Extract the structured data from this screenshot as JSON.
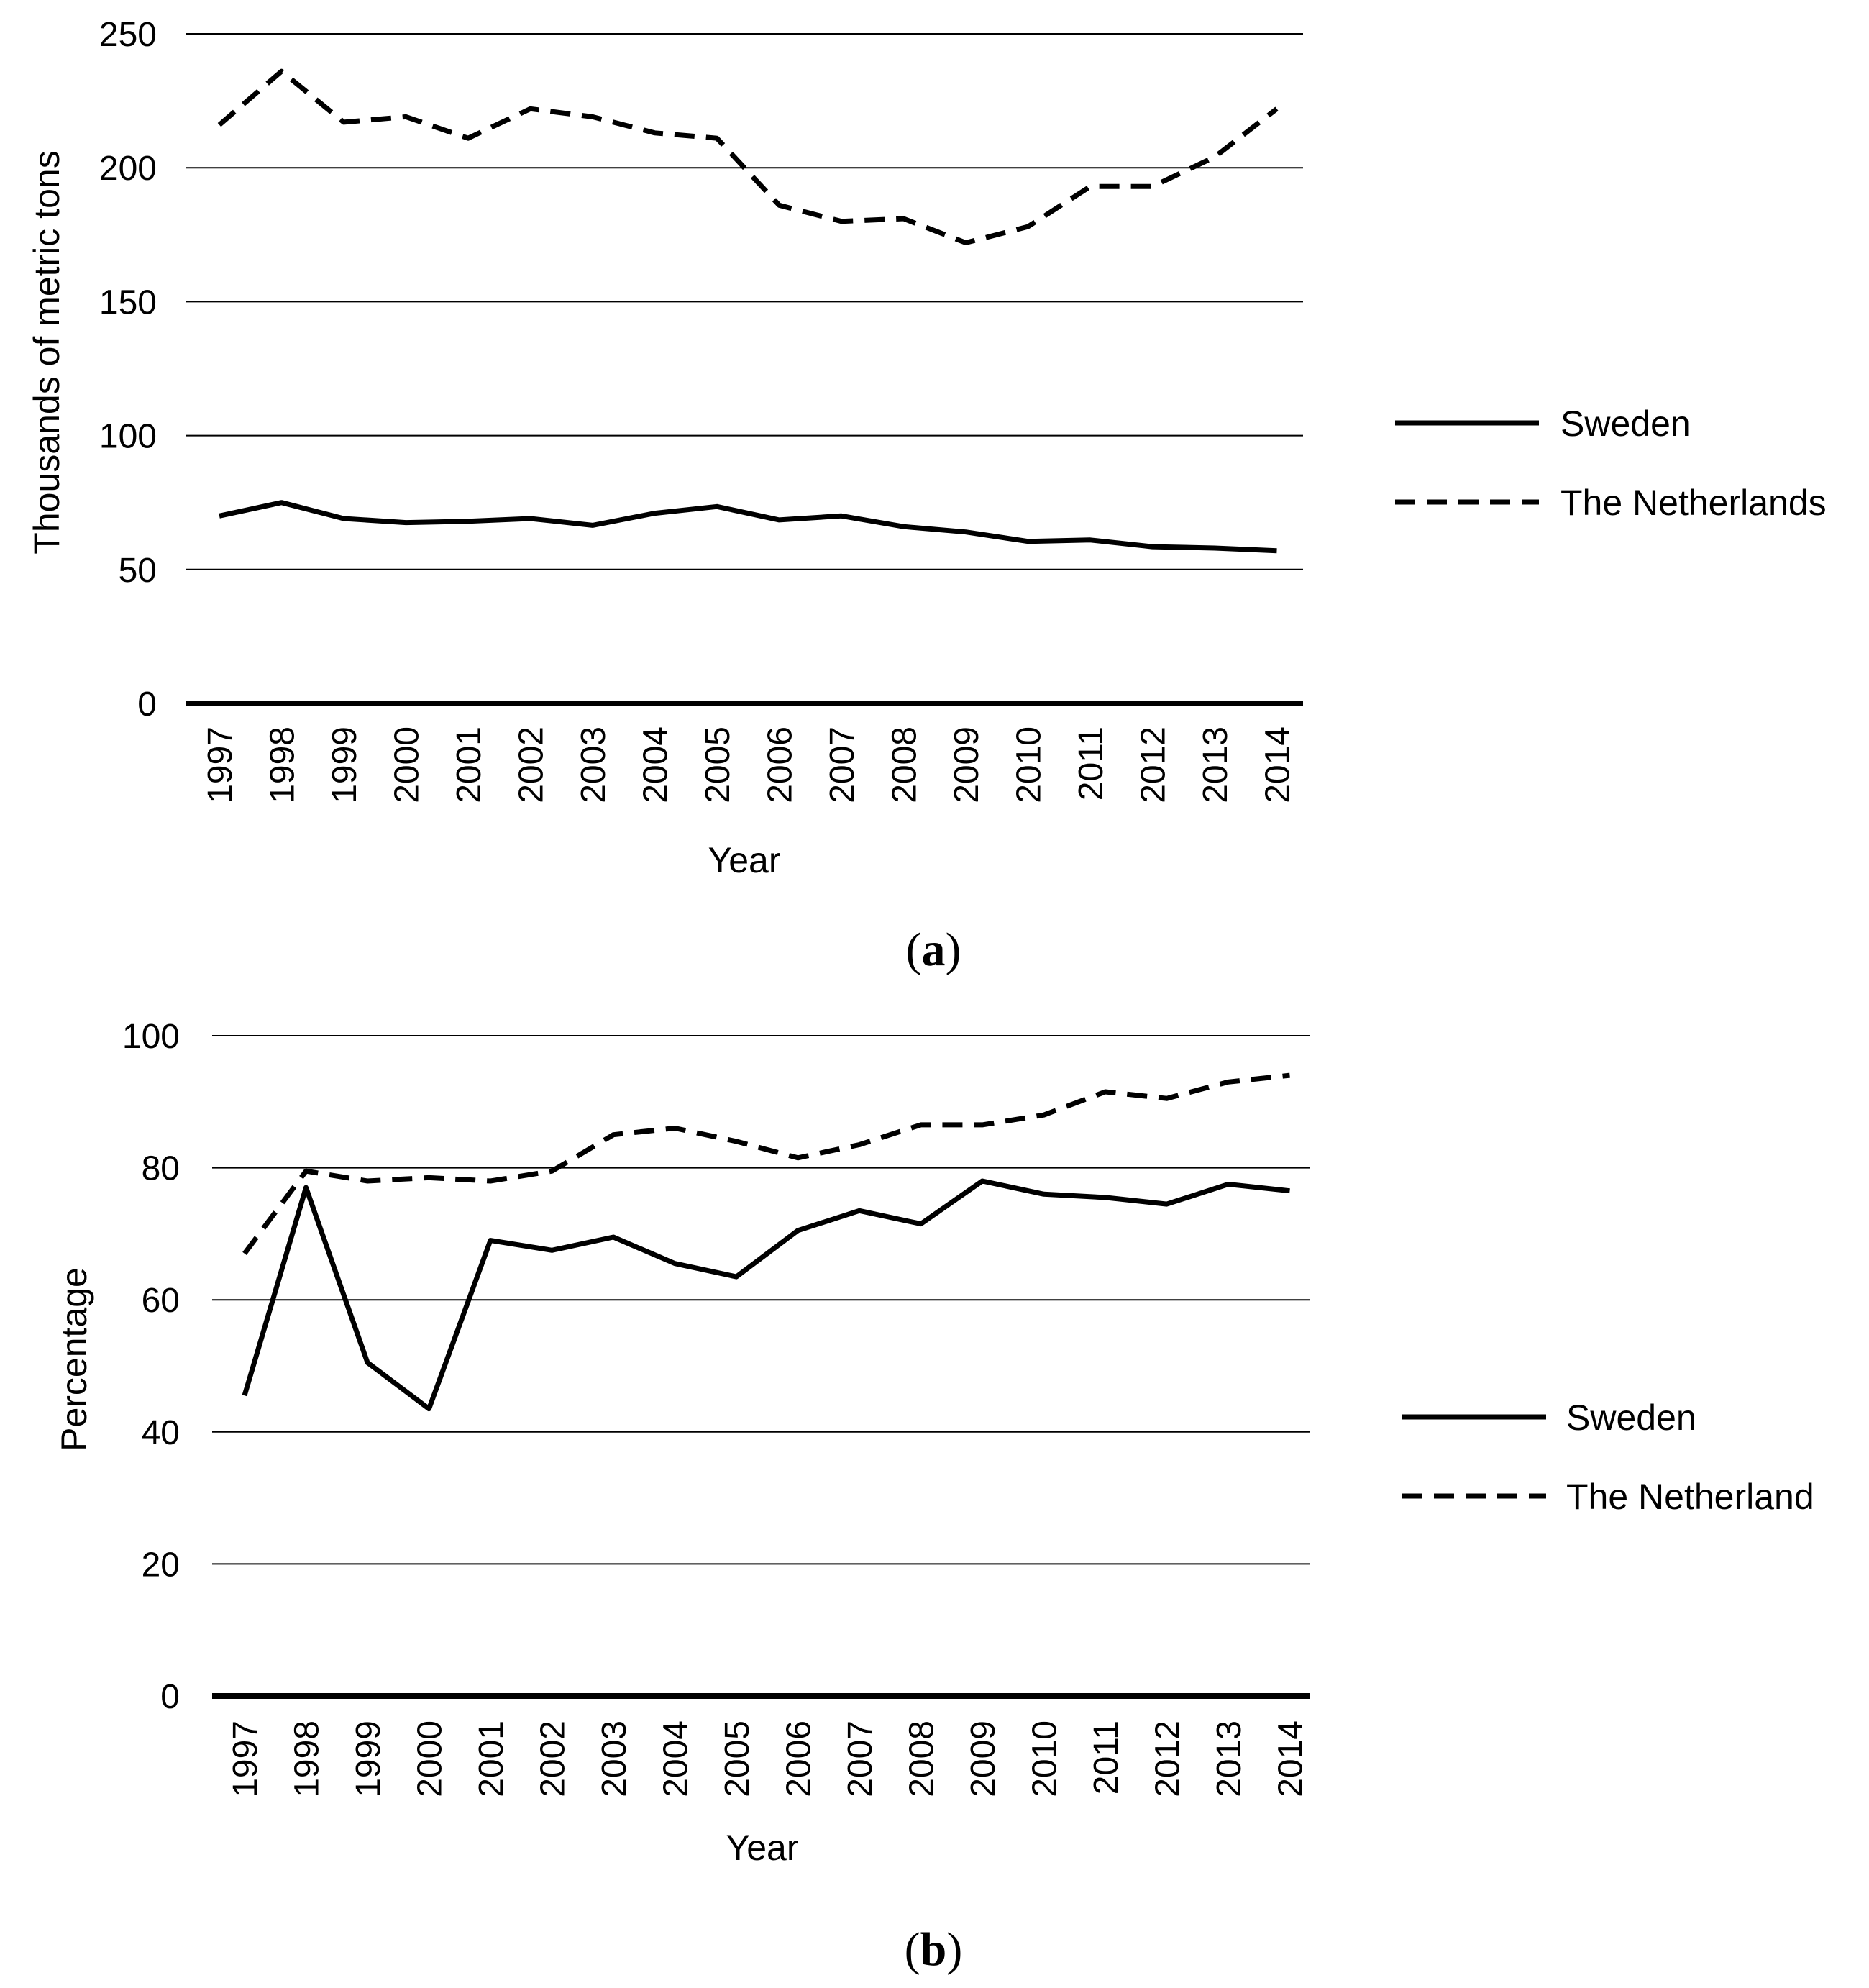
{
  "chart_data": [
    {
      "type": "line",
      "panel_label": "a",
      "caption_open": "(",
      "caption_close": ")",
      "title": "",
      "xlabel": "Year",
      "ylabel": "Thousands of metric tons",
      "ylim": [
        0,
        250
      ],
      "yticks": [
        0,
        50,
        100,
        150,
        200,
        250
      ],
      "grid": true,
      "legend_position": "right",
      "categories": [
        "1997",
        "1998",
        "1999",
        "2000",
        "2001",
        "2002",
        "2003",
        "2004",
        "2005",
        "2006",
        "2007",
        "2008",
        "2009",
        "2010",
        "2011",
        "2012",
        "2013",
        "2014"
      ],
      "series": [
        {
          "name": "Sweden",
          "style": "solid",
          "color": "#000000",
          "values": [
            70,
            75,
            69,
            67.5,
            68,
            69,
            66.5,
            71,
            73.5,
            68.5,
            70,
            66,
            64,
            60.5,
            61,
            58.5,
            58,
            57
          ]
        },
        {
          "name": "The Netherlands",
          "style": "dashed",
          "color": "#000000",
          "values": [
            216,
            236,
            217,
            219,
            211,
            222,
            219,
            213,
            211,
            186,
            180,
            181,
            172,
            178,
            193,
            193,
            204,
            222
          ]
        }
      ]
    },
    {
      "type": "line",
      "panel_label": "b",
      "caption_open": "(",
      "caption_close": ")",
      "title": "",
      "xlabel": "Year",
      "ylabel": "Percentage",
      "ylim": [
        0,
        100
      ],
      "yticks": [
        0,
        20,
        40,
        60,
        80,
        100
      ],
      "grid": true,
      "legend_position": "right",
      "categories": [
        "1997",
        "1998",
        "1999",
        "2000",
        "2001",
        "2002",
        "2003",
        "2004",
        "2005",
        "2006",
        "2007",
        "2008",
        "2009",
        "2010",
        "2011",
        "2012",
        "2013",
        "2014"
      ],
      "series": [
        {
          "name": "Sweden",
          "style": "solid",
          "color": "#000000",
          "values": [
            45.5,
            77,
            50.5,
            43.5,
            69,
            67.5,
            69.5,
            65.5,
            63.5,
            70.5,
            73.5,
            71.5,
            78,
            76,
            75.5,
            74.5,
            77.5,
            76.5
          ]
        },
        {
          "name": "The Netherland",
          "style": "dashed",
          "color": "#000000",
          "values": [
            67,
            79.5,
            78,
            78.5,
            78,
            79.5,
            85,
            86,
            84,
            81.5,
            83.5,
            86.5,
            86.5,
            88,
            91.5,
            90.5,
            93,
            94
          ]
        }
      ]
    }
  ]
}
